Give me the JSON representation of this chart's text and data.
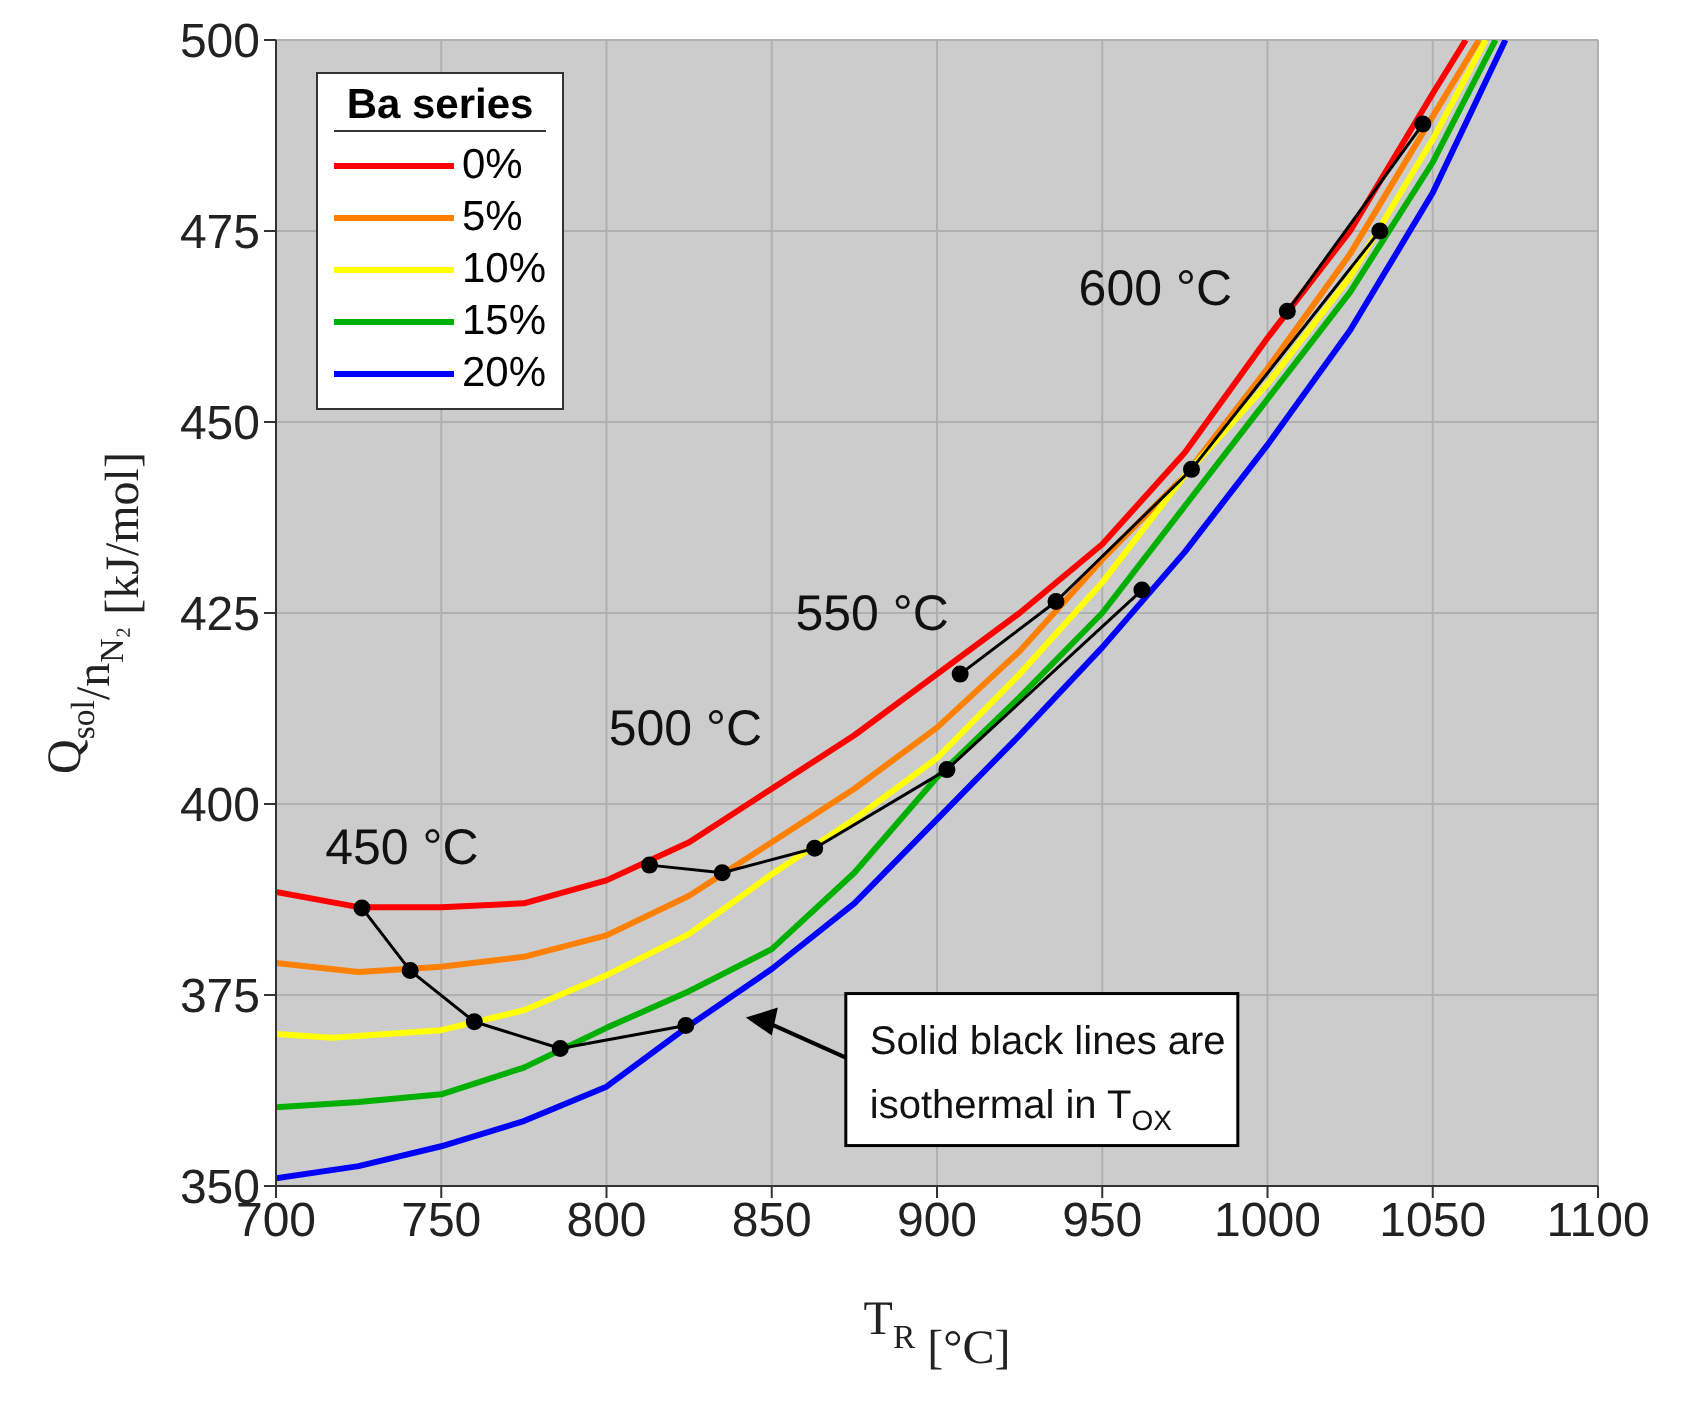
{
  "chart_data": {
    "type": "line",
    "xlabel": "T$_{R}$ [°C]",
    "ylabel": "Q$_{sol}$/n$_{N₂}$ [kJ/mol]",
    "legend_title": "Ba series",
    "legend": "top left",
    "grid": true,
    "line_style": "solid",
    "marker": "none",
    "xlim": [
      700,
      1100
    ],
    "xticks": [
      700,
      750,
      800,
      850,
      900,
      950,
      1000,
      1050,
      1100
    ],
    "ylim": [
      350,
      500
    ],
    "yticks": [
      350,
      375,
      400,
      425,
      450,
      475,
      500
    ],
    "series": [
      {
        "name": "0%",
        "color": "#ff0000",
        "x": [
          700,
          725,
          750,
          775,
          800,
          825,
          850,
          875,
          900,
          925,
          950,
          975,
          1000,
          1025,
          1050,
          1060
        ],
        "values": [
          388.5,
          386.5,
          386.5,
          387,
          390,
          395,
          402,
          409,
          417,
          425,
          434,
          446,
          461,
          475,
          493,
          500
        ]
      },
      {
        "name": "5%",
        "color": "#ff8000",
        "x": [
          700,
          725,
          750,
          775,
          800,
          825,
          850,
          875,
          900,
          925,
          950,
          975,
          1000,
          1025,
          1050,
          1064
        ],
        "values": [
          379.2,
          378,
          378.7,
          380,
          382.8,
          388,
          395,
          402,
          410,
          420,
          432,
          443,
          457,
          472,
          490,
          500
        ]
      },
      {
        "name": "10%",
        "color": "#ffff00",
        "x": [
          700,
          717,
          750,
          775,
          800,
          825,
          850,
          875,
          900,
          925,
          950,
          975,
          1000,
          1025,
          1050,
          1066
        ],
        "values": [
          369.9,
          369.4,
          370.4,
          373,
          377.6,
          383,
          390.8,
          398,
          406,
          417,
          429,
          443,
          455,
          469,
          487,
          500
        ]
      },
      {
        "name": "15%",
        "color": "#00b000",
        "x": [
          700,
          725,
          750,
          775,
          800,
          825,
          850,
          875,
          900,
          925,
          950,
          975,
          1000,
          1025,
          1050,
          1069
        ],
        "values": [
          360.3,
          361,
          362,
          365.5,
          370.7,
          375.5,
          381,
          391,
          403.5,
          414,
          425,
          439,
          453,
          467,
          484,
          500
        ]
      },
      {
        "name": "20%",
        "color": "#0000ff",
        "x": [
          700,
          725,
          750,
          775,
          800,
          825,
          850,
          875,
          900,
          925,
          950,
          975,
          1000,
          1025,
          1050,
          1072
        ],
        "values": [
          351,
          352.6,
          355.2,
          358.5,
          363,
          371,
          378.4,
          387,
          398,
          409,
          420.5,
          433,
          447,
          462,
          480,
          500
        ]
      },
      {
        "color": "#000000",
        "marker": "circle",
        "x": [
          726,
          740.6,
          760,
          786,
          824
        ],
        "values": [
          386.4,
          378.2,
          371.5,
          368,
          371
        ]
      },
      {
        "color": "#000000",
        "marker": "circle",
        "x": [
          813,
          835,
          863,
          903,
          962
        ],
        "values": [
          392,
          391,
          394.2,
          404.5,
          428
        ]
      },
      {
        "color": "#000000",
        "marker": "circle",
        "x": [
          907,
          936,
          977,
          1034
        ],
        "values": [
          417,
          426.5,
          443.8,
          475
        ]
      },
      {
        "color": "#000000",
        "marker": "circle",
        "x": [
          1006,
          1047
        ],
        "values": [
          464.5,
          489
        ]
      }
    ],
    "annotations": [
      "450 °C",
      "500 °C",
      "550 °C",
      "600 °C",
      "Solid black lines are isothermal in T$_{OX}$"
    ]
  }
}
